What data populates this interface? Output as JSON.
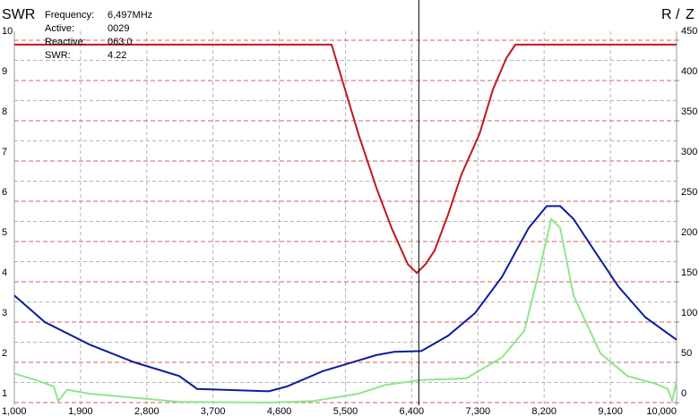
{
  "chart_data": {
    "type": "line",
    "readout": [
      {
        "label": "Frequency:",
        "value": "6,497MHz"
      },
      {
        "label": "Active:",
        "value": "0029"
      },
      {
        "label": "Reactive:",
        "value": "063.0"
      },
      {
        "label": "SWR:",
        "value": "4.22"
      }
    ],
    "legend_separator": "/",
    "cursor": 6497,
    "xlim": [
      1000,
      10000
    ],
    "xticks": [
      {
        "value": 1000,
        "label": "1,000"
      },
      {
        "value": 1900,
        "label": "1,900"
      },
      {
        "value": 2800,
        "label": "2,800"
      },
      {
        "value": 3700,
        "label": "3,700"
      },
      {
        "value": 4600,
        "label": "4,600"
      },
      {
        "value": 5500,
        "label": "5,500"
      },
      {
        "value": 6400,
        "label": "6,400"
      },
      {
        "value": 7300,
        "label": "7,300"
      },
      {
        "value": 8200,
        "label": "8,200"
      },
      {
        "value": 9100,
        "label": "9,100"
      },
      {
        "value": 10000,
        "label": "10,000"
      }
    ],
    "ylim": [
      1,
      10
    ],
    "yticks": [
      1,
      2,
      3,
      4,
      5,
      6,
      7,
      8,
      9,
      10
    ],
    "y2lim": [
      0,
      450
    ],
    "y2ticks": [
      0,
      50,
      100,
      150,
      200,
      250,
      300,
      350,
      400,
      450
    ],
    "grid": true,
    "series": [
      {
        "name": "SWR",
        "color": "#c0191c",
        "x": [
          1000,
          5311,
          5494,
          5677,
          5921,
          6128,
          6347,
          6469,
          6590,
          6712,
          6895,
          7077,
          7321,
          7504,
          7687,
          7809,
          10000
        ],
        "values": [
          9.89,
          9.89,
          8.78,
          7.67,
          6.33,
          5.33,
          4.44,
          4.22,
          4.44,
          4.78,
          5.67,
          6.67,
          7.67,
          8.78,
          9.56,
          9.89,
          9.89
        ]
      },
      {
        "name": "Z",
        "color": "#0c1c9c",
        "axis": "y2",
        "x": [
          1000,
          1414,
          2023,
          2632,
          3241,
          3485,
          4459,
          4703,
          5190,
          5921,
          6164,
          6530,
          6895,
          7260,
          7626,
          7991,
          8235,
          8418,
          8600,
          8844,
          9209,
          9575,
          10000
        ],
        "values": [
          133,
          100,
          72,
          50,
          33,
          17,
          14,
          20,
          39,
          59,
          63,
          64,
          83,
          111,
          156,
          217,
          244,
          244,
          228,
          194,
          144,
          106,
          78
        ]
      },
      {
        "name": "R",
        "color": "#8fe68a",
        "axis": "y2",
        "x": [
          1000,
          1292,
          1536,
          1597,
          1719,
          2023,
          2632,
          3241,
          4459,
          5068,
          5677,
          6042,
          6530,
          7139,
          7626,
          7930,
          8113,
          8296,
          8418,
          8600,
          8966,
          9331,
          9697,
          9880,
          9940,
          10000
        ],
        "values": [
          36,
          28,
          20,
          2,
          16,
          11,
          6,
          1,
          0,
          2,
          11,
          22,
          28,
          30,
          56,
          89,
          156,
          228,
          217,
          133,
          61,
          33,
          24,
          17,
          2,
          28
        ]
      }
    ]
  }
}
